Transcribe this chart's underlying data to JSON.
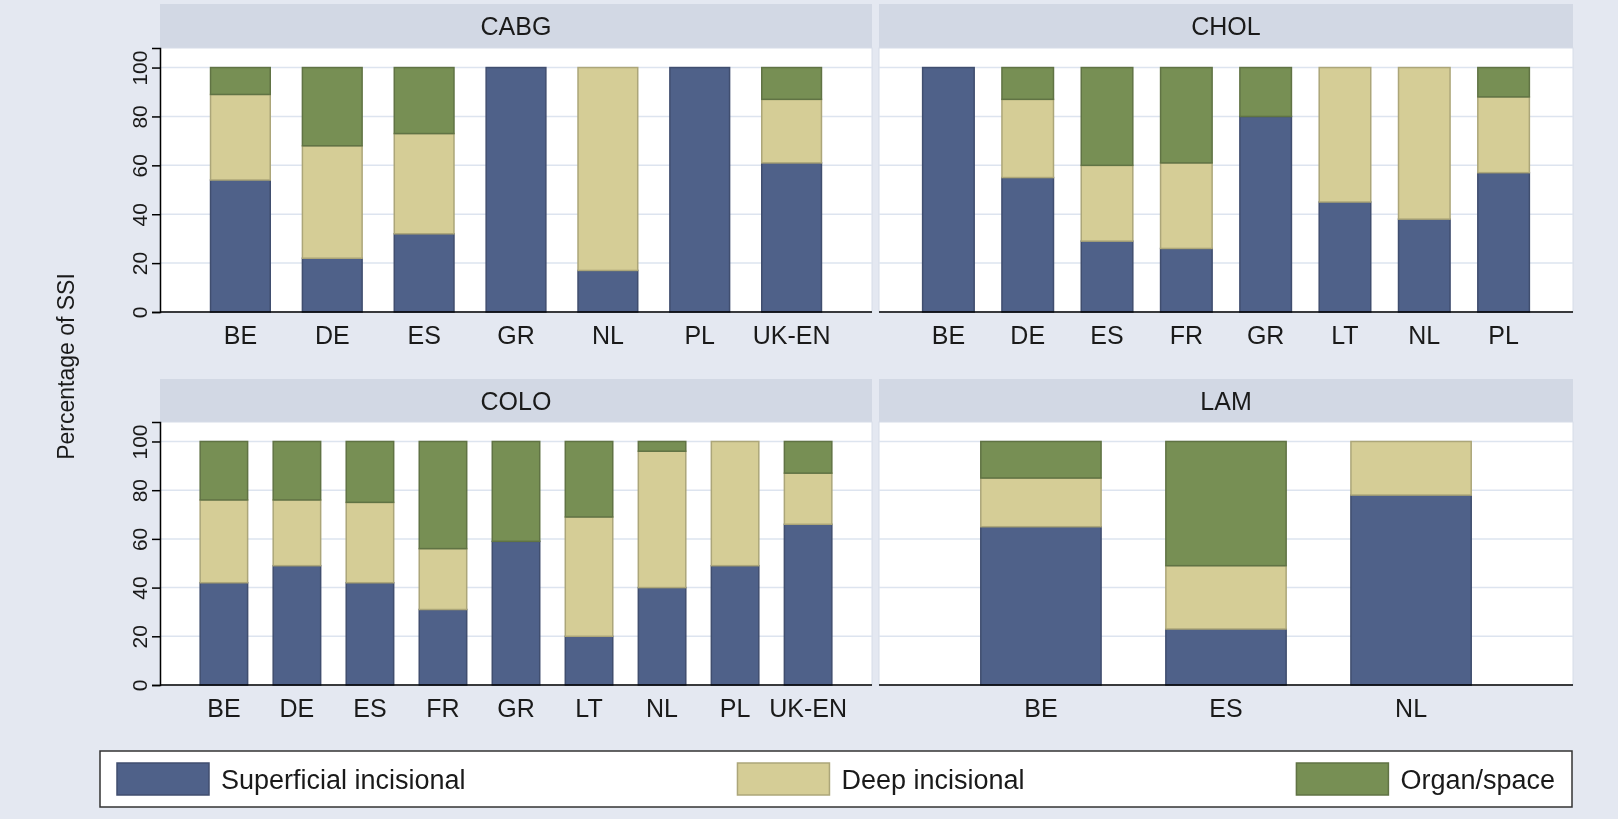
{
  "chart_data": [
    {
      "type": "bar",
      "title": "CABG",
      "ylabel": "Percentage of SSI",
      "stacked": true,
      "grid": "y",
      "legend": "bottom",
      "ylim": [
        0,
        108
      ],
      "yticks": [
        0,
        20,
        40,
        60,
        80,
        100
      ],
      "categories": [
        "BE",
        "DE",
        "ES",
        "GR",
        "NL",
        "PL",
        "UK-EN"
      ],
      "series": [
        {
          "name": "Superficial incisional",
          "color": "#4f6189",
          "values": [
            54,
            22,
            32,
            100,
            17,
            100,
            61
          ]
        },
        {
          "name": "Deep incisional",
          "color": "#d5cd96",
          "values": [
            35,
            46,
            41,
            0,
            83,
            0,
            26
          ]
        },
        {
          "name": "Organ/space",
          "color": "#778f54",
          "values": [
            11,
            32,
            27,
            0,
            0,
            0,
            13
          ]
        }
      ]
    },
    {
      "type": "bar",
      "title": "CHOL",
      "stacked": true,
      "grid": "y",
      "tick_labels": "x",
      "ylim": [
        0,
        108
      ],
      "yticks": [
        0,
        20,
        40,
        60,
        80,
        100
      ],
      "categories": [
        "BE",
        "DE",
        "ES",
        "FR",
        "GR",
        "LT",
        "NL",
        "PL"
      ],
      "series": [
        {
          "color": "#4f6189",
          "values": [
            100,
            55,
            29,
            26,
            80,
            45,
            38,
            57
          ]
        },
        {
          "color": "#d5cd96",
          "values": [
            0,
            32,
            31,
            35,
            0,
            55,
            62,
            31
          ]
        },
        {
          "color": "#778f54",
          "values": [
            0,
            13,
            40,
            39,
            20,
            0,
            0,
            12
          ]
        }
      ]
    },
    {
      "type": "bar",
      "title": "COLO",
      "stacked": true,
      "grid": "y",
      "ylim": [
        0,
        108
      ],
      "yticks": [
        0,
        20,
        40,
        60,
        80,
        100
      ],
      "categories": [
        "BE",
        "DE",
        "ES",
        "FR",
        "GR",
        "LT",
        "NL",
        "PL",
        "UK-EN"
      ],
      "series": [
        {
          "color": "#4f6189",
          "values": [
            42,
            49,
            42,
            31,
            59,
            20,
            40,
            49,
            66
          ]
        },
        {
          "color": "#d5cd96",
          "values": [
            34,
            27,
            33,
            25,
            0,
            49,
            56,
            51,
            21
          ]
        },
        {
          "color": "#778f54",
          "values": [
            24,
            24,
            25,
            44,
            41,
            31,
            4,
            0,
            13
          ]
        }
      ]
    },
    {
      "type": "bar",
      "title": "LAM",
      "stacked": true,
      "grid": "y",
      "tick_labels": "x",
      "ylim": [
        0,
        108
      ],
      "yticks": [
        0,
        20,
        40,
        60,
        80,
        100
      ],
      "categories": [
        "BE",
        "ES",
        "NL"
      ],
      "series": [
        {
          "color": "#4f6189",
          "values": [
            65,
            23,
            78
          ]
        },
        {
          "color": "#d5cd96",
          "values": [
            20,
            26,
            22
          ]
        },
        {
          "color": "#778f54",
          "values": [
            15,
            51,
            0
          ]
        }
      ]
    }
  ]
}
